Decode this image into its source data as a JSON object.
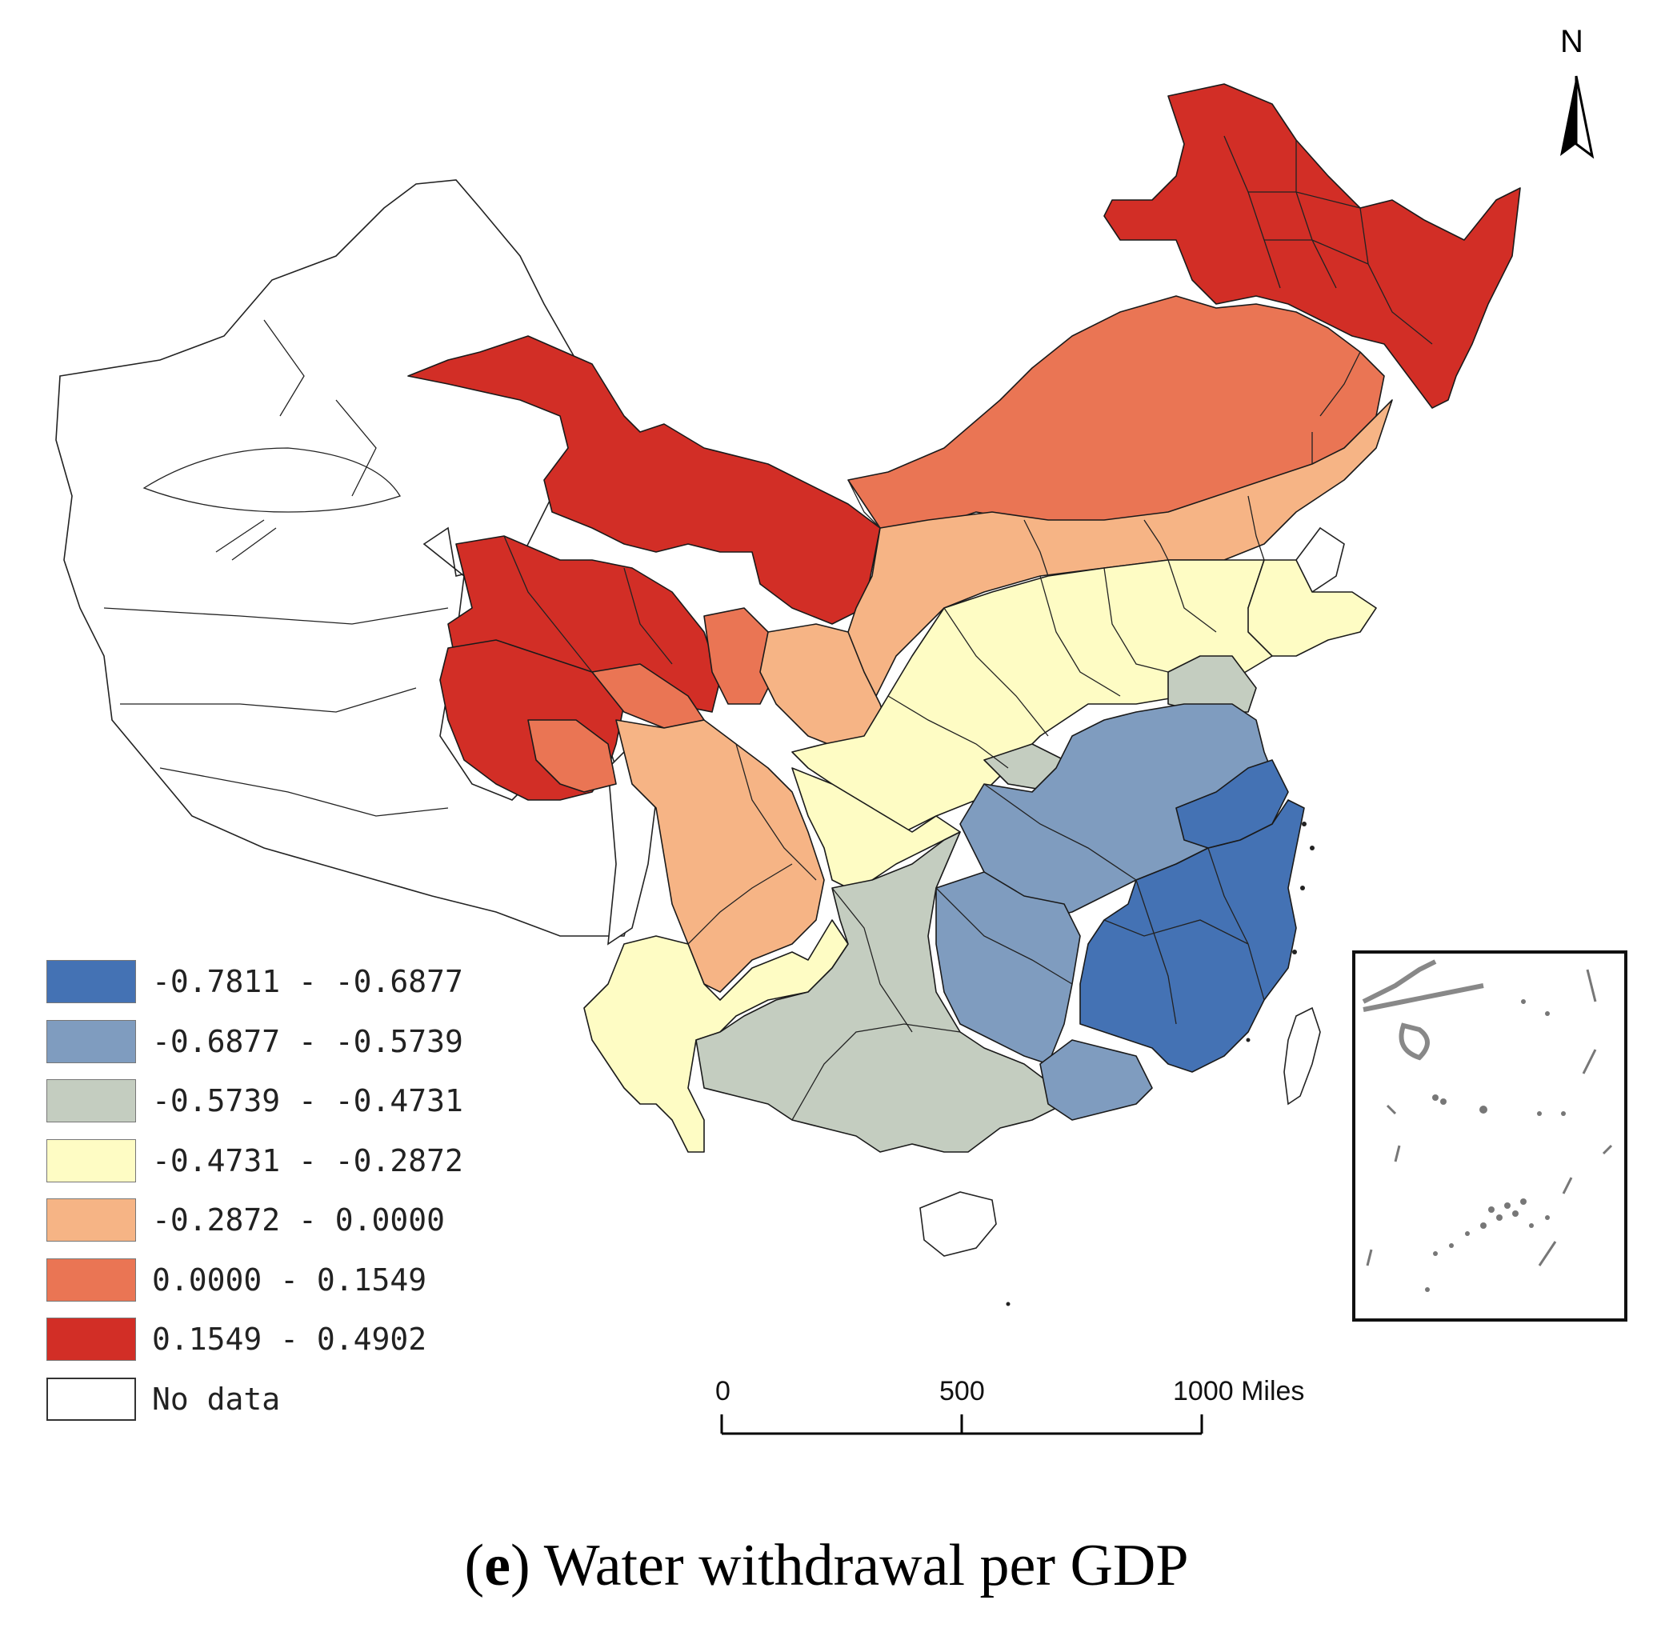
{
  "map": {
    "title_letter": "e",
    "title_text": "Water withdrawal per GDP",
    "north_label": "N"
  },
  "legend": {
    "items": [
      {
        "label": "-0.7811 - -0.6877",
        "color": "#4472b4"
      },
      {
        "label": "-0.6877 - -0.5739",
        "color": "#7f9cbf"
      },
      {
        "label": "-0.5739 - -0.4731",
        "color": "#c4cdc0"
      },
      {
        "label": "-0.4731 - -0.2872",
        "color": "#fefcc4"
      },
      {
        "label": "-0.2872 - 0.0000",
        "color": "#f6b485"
      },
      {
        "label": "0.0000 - 0.1549",
        "color": "#ea7554"
      },
      {
        "label": "0.1549 - 0.4902",
        "color": "#d22e26"
      },
      {
        "label": "No data",
        "color": "#ffffff"
      }
    ]
  },
  "scale_bar": {
    "ticks": [
      "0",
      "500",
      "1000 Miles"
    ]
  }
}
